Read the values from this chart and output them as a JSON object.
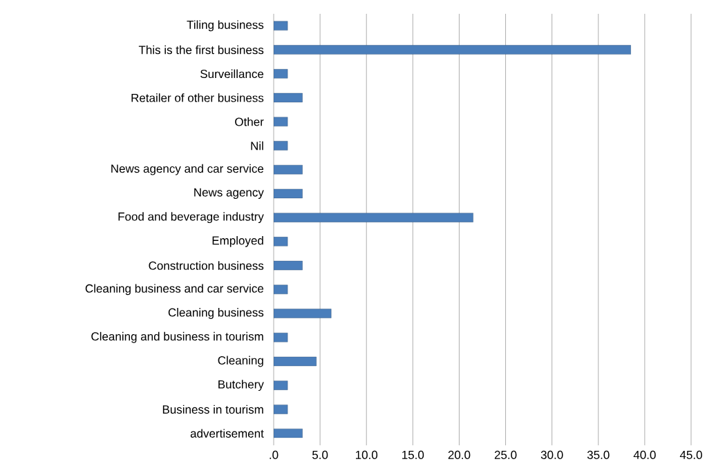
{
  "chart_data": {
    "type": "bar",
    "orientation": "horizontal",
    "categories": [
      "Tiling business",
      "This is the first business",
      "Surveillance",
      "Retailer of other business",
      "Other",
      "Nil",
      "News agency and car service",
      "News agency",
      "Food and beverage industry",
      "Employed",
      "Construction business",
      "Cleaning business and car service",
      "Cleaning business",
      "Cleaning and business in tourism",
      "Cleaning",
      "Butchery",
      "Business in tourism",
      "advertisement"
    ],
    "values": [
      1.5,
      38.5,
      1.5,
      3.1,
      1.5,
      1.5,
      3.1,
      3.1,
      21.5,
      1.5,
      3.1,
      1.5,
      6.2,
      1.5,
      4.6,
      1.5,
      1.5,
      3.1
    ],
    "color": "#4a7ebb",
    "xlim": [
      0,
      45
    ],
    "xticks": [
      {
        "value": 0,
        "label": ".0"
      },
      {
        "value": 5,
        "label": "5.0"
      },
      {
        "value": 10,
        "label": "10.0"
      },
      {
        "value": 15,
        "label": "15.0"
      },
      {
        "value": 20,
        "label": "20.0"
      },
      {
        "value": 25,
        "label": "25.0"
      },
      {
        "value": 30,
        "label": "30.0"
      },
      {
        "value": 35,
        "label": "35.0"
      },
      {
        "value": 40,
        "label": "40.0"
      },
      {
        "value": 45,
        "label": "45.0"
      }
    ],
    "grid": "x"
  }
}
